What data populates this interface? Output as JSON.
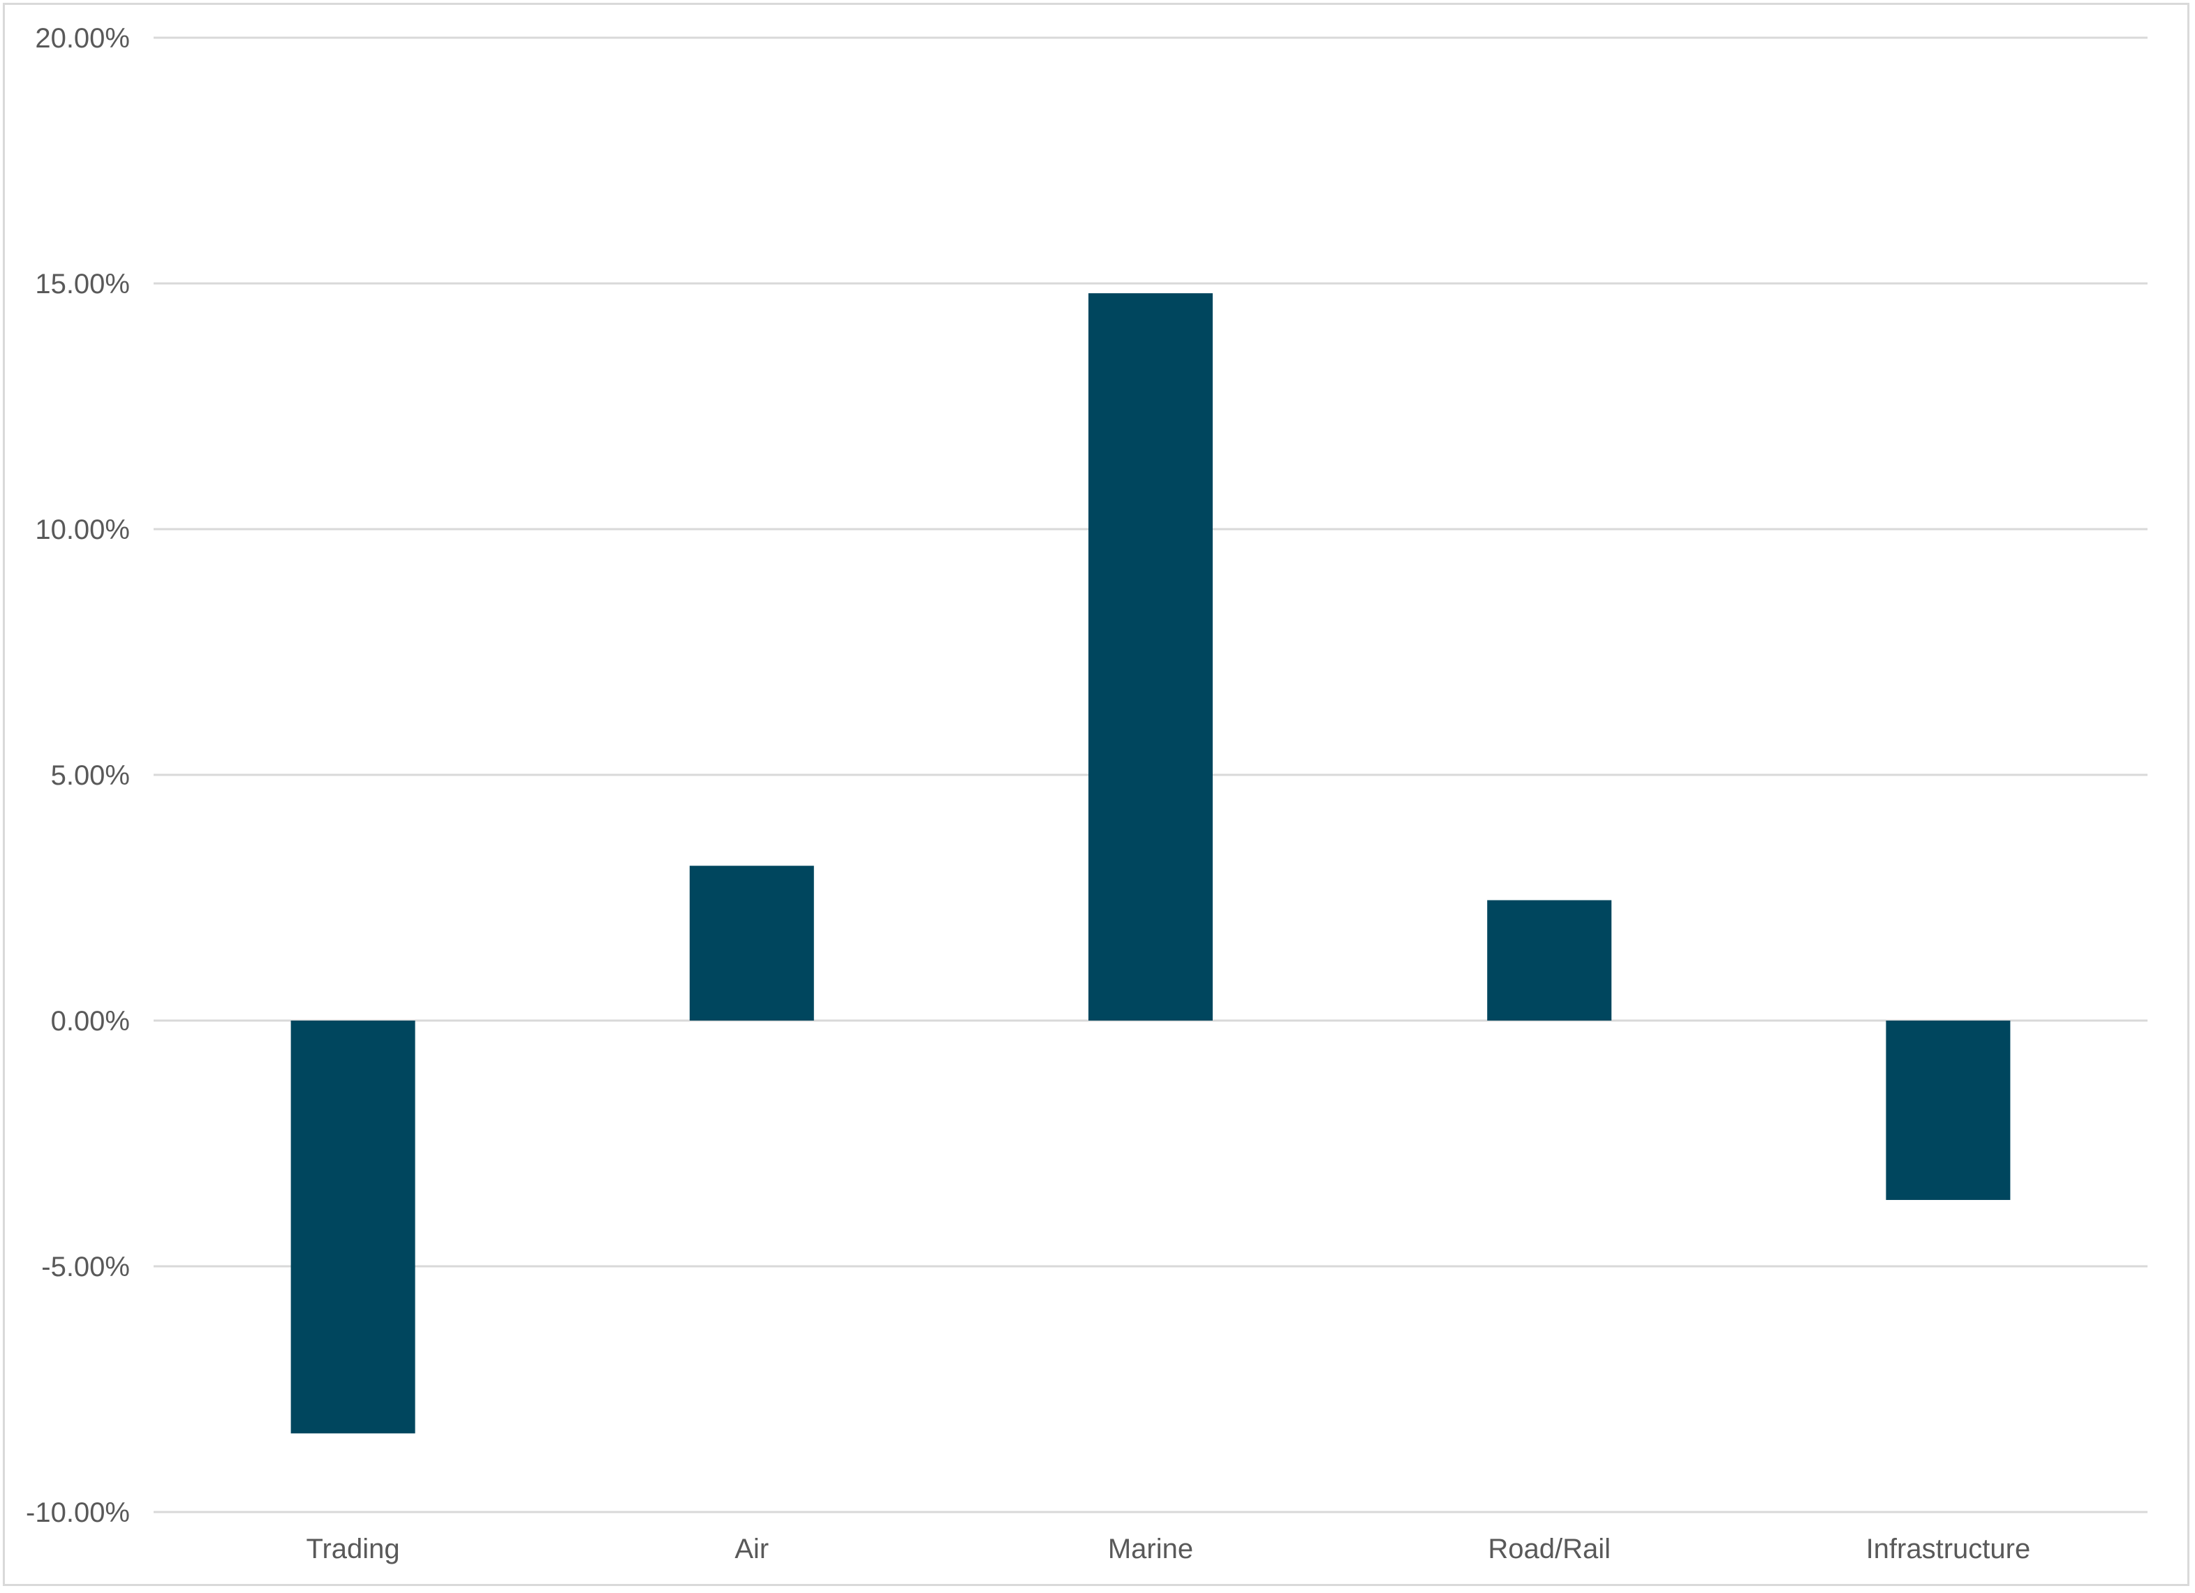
{
  "chart_data": {
    "type": "bar",
    "title": "",
    "xlabel": "",
    "ylabel": "",
    "categories": [
      "Trading",
      "Air",
      "Marine",
      "Road/Rail",
      "Infrastructure"
    ],
    "values": [
      -8.4,
      3.15,
      14.8,
      2.45,
      -3.65
    ],
    "ylim": [
      -10,
      20
    ],
    "yticks": [
      20,
      15,
      10,
      5,
      0,
      -5,
      -10
    ],
    "ytick_labels": [
      "20.00%",
      "15.00%",
      "10.00%",
      "5.00%",
      "0.00%",
      "-5.00%",
      "-10.00%"
    ],
    "grid": true,
    "legend": "none",
    "colors": {
      "bar": "#00465e",
      "grid": "#d9d9d9",
      "text": "#595959",
      "border": "#d9d9d9"
    }
  }
}
